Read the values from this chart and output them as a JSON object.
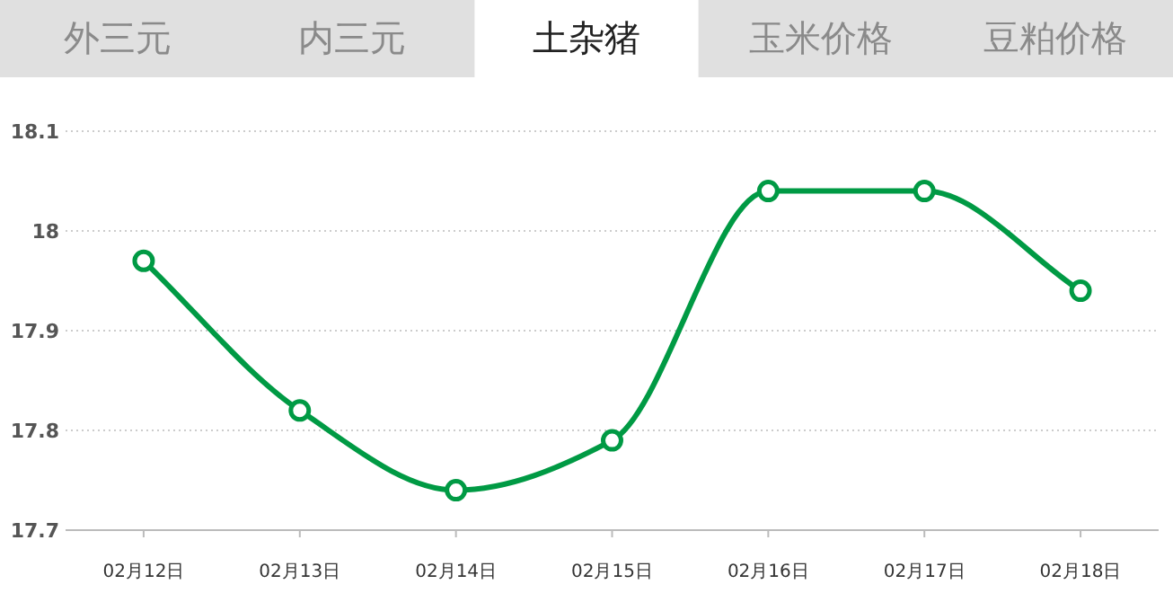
{
  "chart_data": {
    "type": "line",
    "title": "土杂猪",
    "annotations": [
      "外三元",
      "内三元",
      "玉米价格",
      "豆粕价格"
    ],
    "categories": [
      "02月12日",
      "02月13日",
      "02月14日",
      "02月15日",
      "02月16日",
      "02月17日",
      "02月18日"
    ],
    "series": [
      {
        "color": "#009a44",
        "values": [
          17.97,
          17.82,
          17.74,
          17.79,
          18.04,
          18.04,
          17.94
        ]
      }
    ],
    "ylim": [
      17.7,
      18.1
    ],
    "yticks": [
      17.7,
      17.8,
      17.9,
      18,
      18.1
    ],
    "grid": "y",
    "marker": "circle",
    "line_style": "solid"
  }
}
